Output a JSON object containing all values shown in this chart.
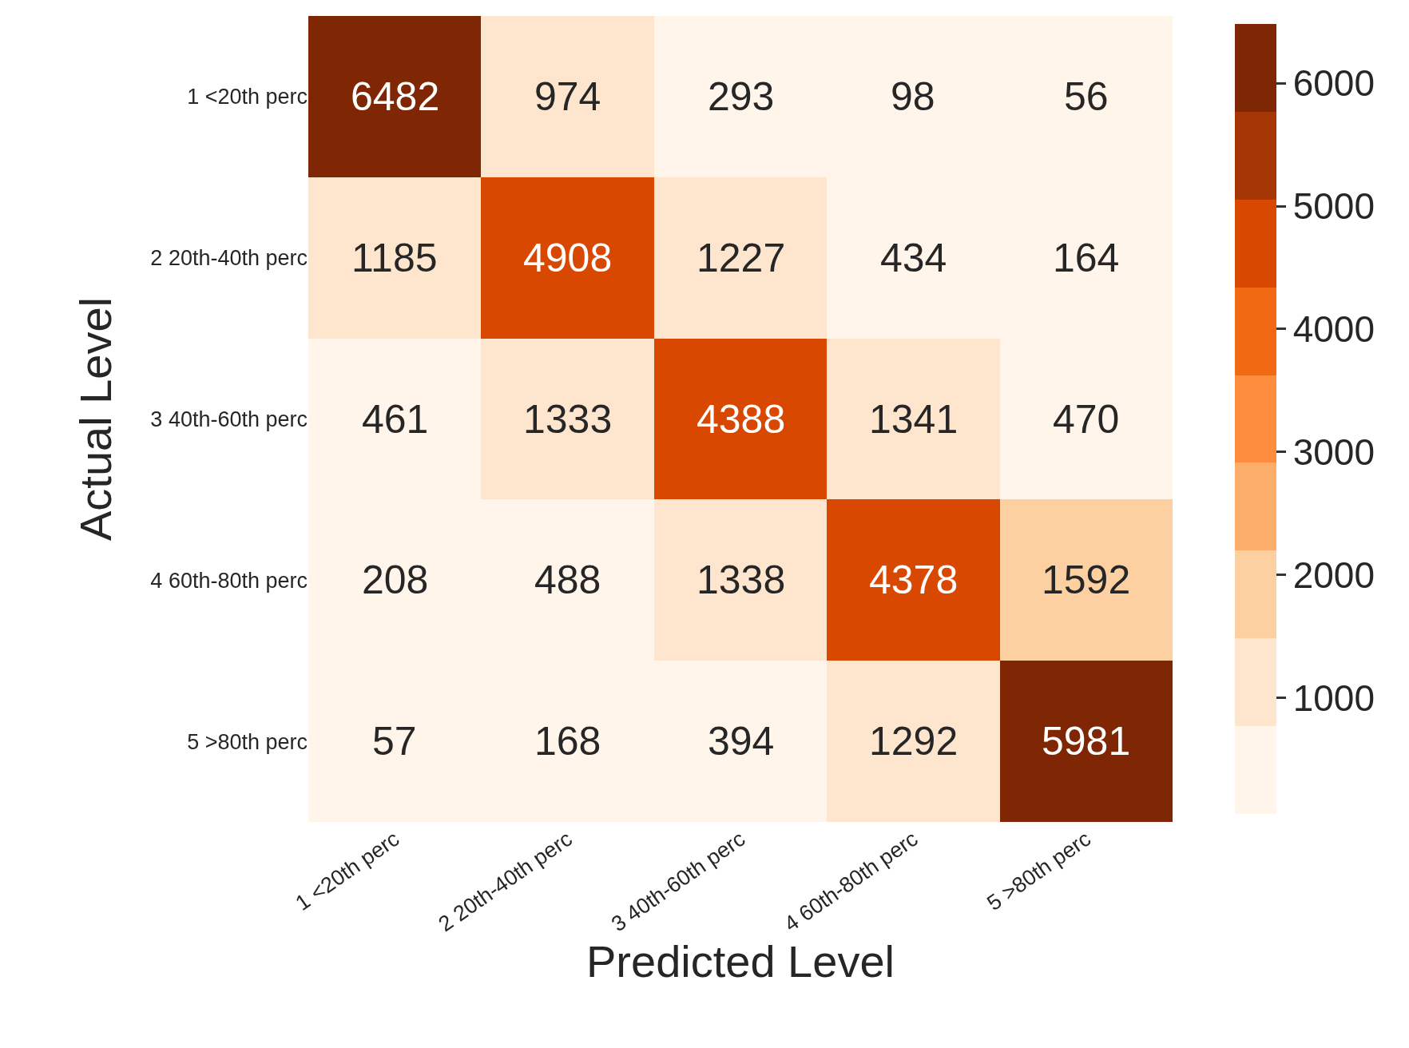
{
  "chart_data": {
    "type": "heatmap",
    "xlabel": "Predicted Level",
    "ylabel": "Actual Level",
    "categories": [
      "1 <20th perc",
      "2 20th-40th perc",
      "3 40th-60th perc",
      "4 60th-80th perc",
      "5 >80th perc"
    ],
    "y_categories": [
      "1 <20th perc",
      "2 20th-40th perc",
      "3 40th-60th perc",
      "4 60th-80th perc",
      "5 >80th perc"
    ],
    "cells": [
      [
        6482,
        974,
        293,
        98,
        56
      ],
      [
        1185,
        4908,
        1227,
        434,
        164
      ],
      [
        461,
        1333,
        4388,
        1341,
        470
      ],
      [
        208,
        488,
        1338,
        4378,
        1592
      ],
      [
        57,
        168,
        394,
        1292,
        5981
      ]
    ],
    "colors": [
      "#fff5eb",
      "#fee6ce",
      "#fdd0a2",
      "#fdae6b",
      "#fd8d3c",
      "#f16913",
      "#d94801",
      "#a63603",
      "#7f2704"
    ],
    "clim": [
      56,
      6482
    ],
    "cticks": [
      1000,
      2000,
      3000,
      4000,
      5000,
      6000
    ],
    "data_labels": true
  }
}
